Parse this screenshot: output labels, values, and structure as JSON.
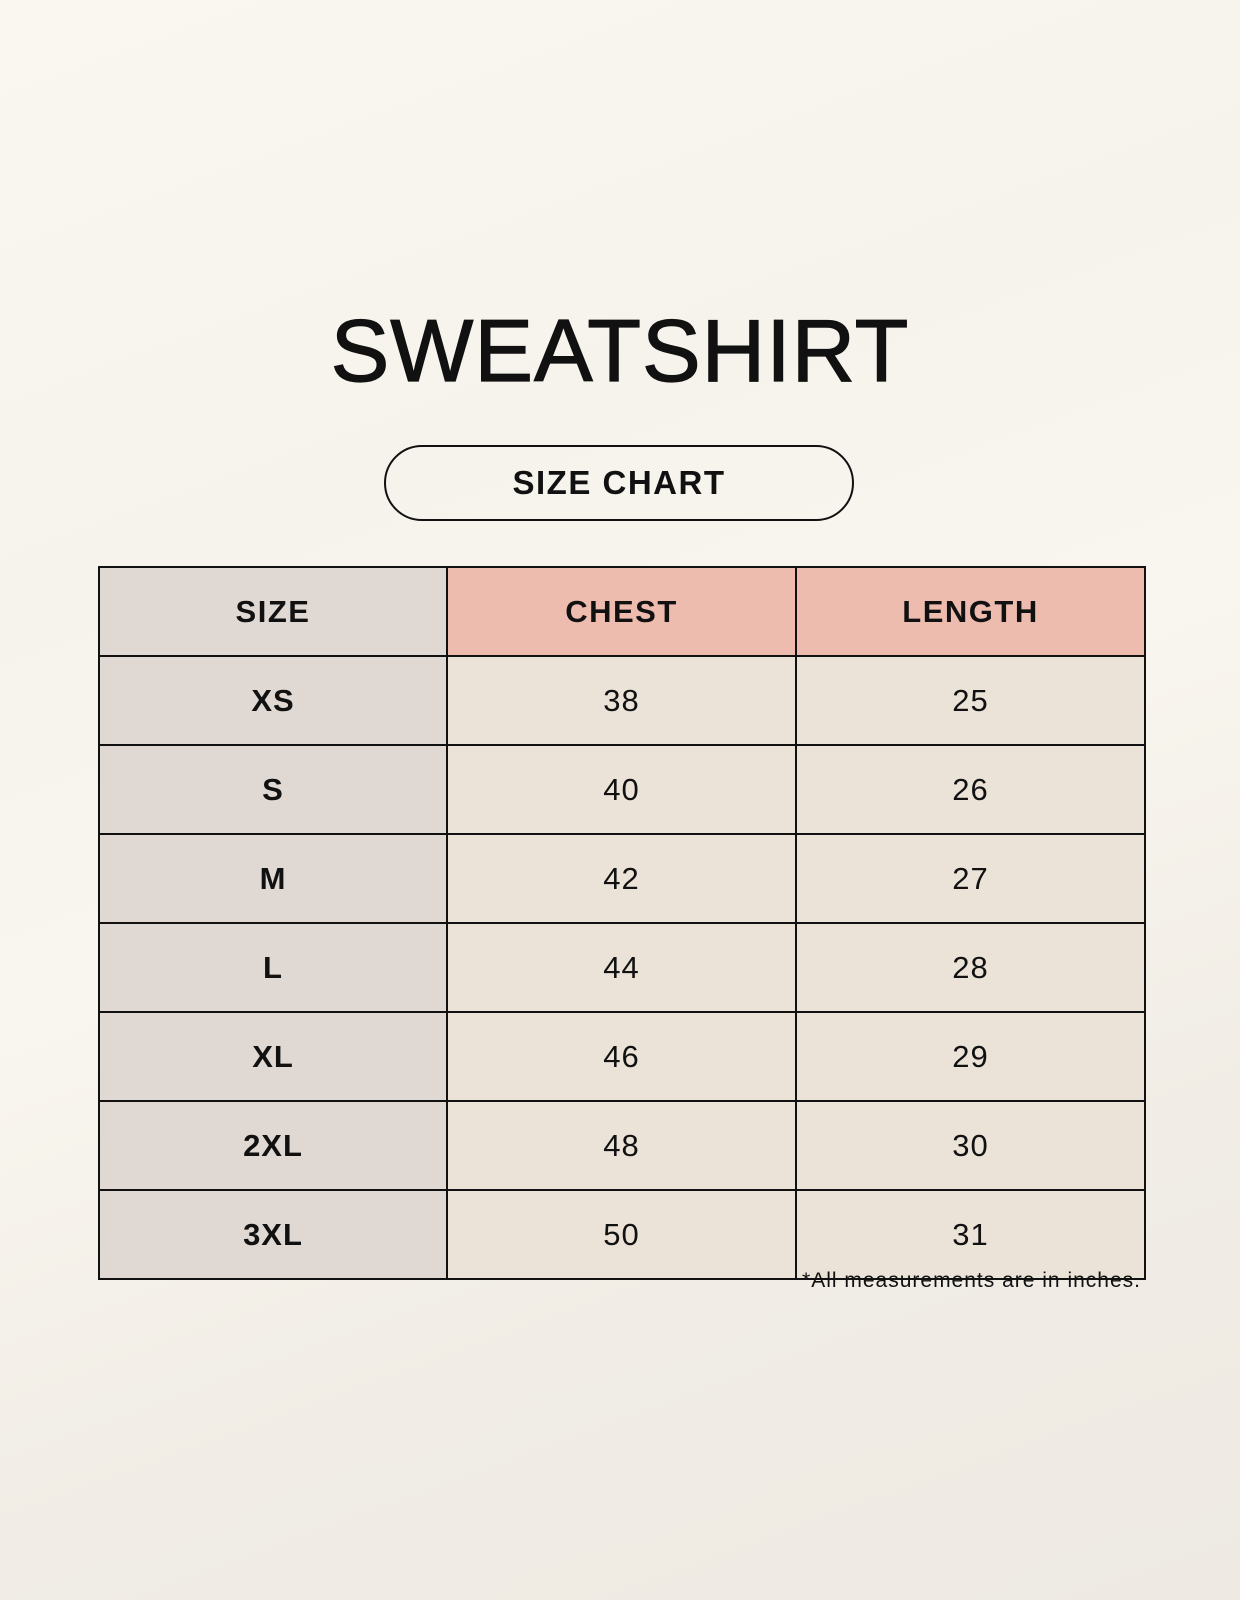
{
  "title": "SWEATSHIRT",
  "subtitle": "SIZE CHART",
  "table": {
    "headers": [
      "SIZE",
      "CHEST",
      "LENGTH"
    ],
    "rows": [
      [
        "XS",
        "38",
        "25"
      ],
      [
        "S",
        "40",
        "26"
      ],
      [
        "M",
        "42",
        "27"
      ],
      [
        "L",
        "44",
        "28"
      ],
      [
        "XL",
        "46",
        "29"
      ],
      [
        "2XL",
        "48",
        "30"
      ],
      [
        "3XL",
        "50",
        "31"
      ]
    ]
  },
  "footnote": "*All measurements are in inches.",
  "colors": {
    "size_column": "#e0d8d2",
    "header_accent": "#eebcae",
    "value_cells": "#ebe3d8"
  }
}
